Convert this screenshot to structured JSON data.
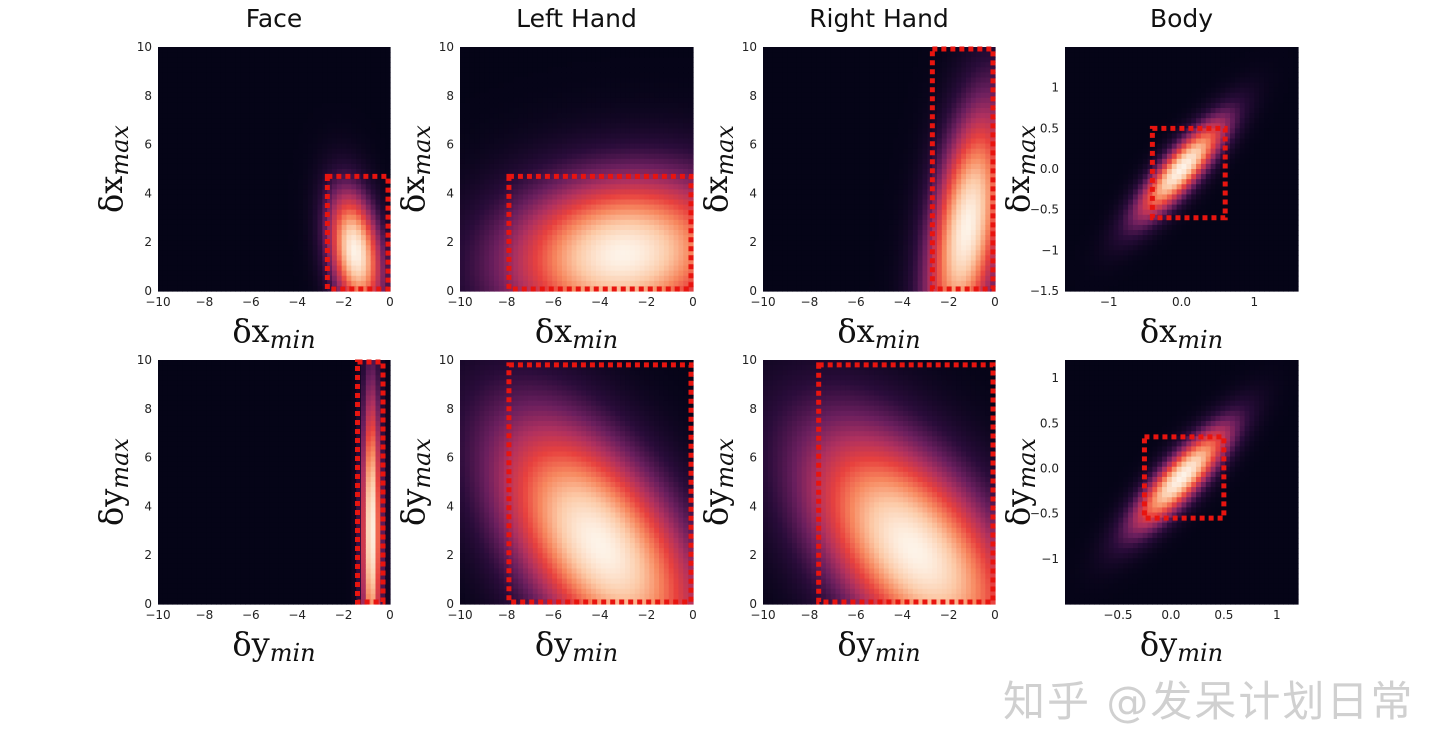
{
  "watermark": "知乎 @发呆计划日常",
  "colors": {
    "background": "#ffffff",
    "box_outline": "#e8140f",
    "colormap": [
      "#050417",
      "#2a0c3a",
      "#6b1f5e",
      "#b0315f",
      "#e8413e",
      "#f7885f",
      "#fcc9a6",
      "#fdf3e8"
    ]
  },
  "chart_data": [
    {
      "type": "heatmap",
      "title": "Face",
      "xlabel": "δx",
      "xlabel_sub": "min",
      "ylabel": "δx",
      "ylabel_sub": "max",
      "xlim": [
        -10,
        0
      ],
      "ylim": [
        0,
        10
      ],
      "xticks": [
        -10,
        -8,
        -6,
        -4,
        -2,
        0
      ],
      "yticks": [
        0,
        2,
        4,
        6,
        8,
        10
      ],
      "density_peak": {
        "x": -1.5,
        "y": 1.6,
        "sx": 0.6,
        "sy": 1.3,
        "rho": -0.3
      },
      "box": {
        "x0": -2.7,
        "x1": 0,
        "y0": 0,
        "y1": 4.7
      }
    },
    {
      "type": "heatmap",
      "title": "Left Hand",
      "xlabel": "δx",
      "xlabel_sub": "min",
      "ylabel": "δx",
      "ylabel_sub": "max",
      "xlim": [
        -10,
        0
      ],
      "ylim": [
        0,
        10
      ],
      "xticks": [
        -10,
        -8,
        -6,
        -4,
        -2,
        0
      ],
      "yticks": [
        0,
        2,
        4,
        6,
        8,
        10
      ],
      "density_peak": {
        "x": -3,
        "y": 1.5,
        "sx": 2.6,
        "sy": 1.7,
        "rho": 0.1
      },
      "box": {
        "x0": -7.9,
        "x1": 0,
        "y0": 0,
        "y1": 4.7
      }
    },
    {
      "type": "heatmap",
      "title": "Right Hand",
      "xlabel": "δx",
      "xlabel_sub": "min",
      "ylabel": "δx",
      "ylabel_sub": "max",
      "xlim": [
        -10,
        0
      ],
      "ylim": [
        0,
        10
      ],
      "xticks": [
        -10,
        -8,
        -6,
        -4,
        -2,
        0
      ],
      "yticks": [
        0,
        2,
        4,
        6,
        8,
        10
      ],
      "density_peak": {
        "x": -1.2,
        "y": 2.6,
        "sx": 0.9,
        "sy": 2.6,
        "rho": 0.45
      },
      "box": {
        "x0": -2.7,
        "x1": 0,
        "y0": 0,
        "y1": 10
      }
    },
    {
      "type": "heatmap",
      "title": "Body",
      "xlabel": "δx",
      "xlabel_sub": "min",
      "ylabel": "δx",
      "ylabel_sub": "max",
      "xlim": [
        -1.6,
        1.6
      ],
      "ylim": [
        -1.5,
        1.5
      ],
      "xticks": [
        -1,
        0,
        1
      ],
      "yticks": [
        -1.5,
        -1.0,
        -0.5,
        0.0,
        0.5,
        1.0
      ],
      "density_peak": {
        "x": 0,
        "y": 0,
        "sx": 0.32,
        "sy": 0.32,
        "rho": 0.85
      },
      "box": {
        "x0": -0.4,
        "x1": 0.6,
        "y0": -0.6,
        "y1": 0.5
      }
    },
    {
      "type": "heatmap",
      "title": "",
      "xlabel": "δy",
      "xlabel_sub": "min",
      "ylabel": "δy",
      "ylabel_sub": "max",
      "xlim": [
        -10,
        0
      ],
      "ylim": [
        0,
        10
      ],
      "xticks": [
        -10,
        -8,
        -6,
        -4,
        -2,
        0
      ],
      "yticks": [
        0,
        2,
        4,
        6,
        8,
        10
      ],
      "density_peak": {
        "x": -0.8,
        "y": 3.0,
        "sx": 0.22,
        "sy": 3.0,
        "rho": 0
      },
      "box": {
        "x0": -1.4,
        "x1": -0.3,
        "y0": 0,
        "y1": 10
      }
    },
    {
      "type": "heatmap",
      "title": "",
      "xlabel": "δy",
      "xlabel_sub": "min",
      "ylabel": "δy",
      "ylabel_sub": "max",
      "xlim": [
        -10,
        0
      ],
      "ylim": [
        0,
        10
      ],
      "xticks": [
        -10,
        -8,
        -6,
        -4,
        -2,
        0
      ],
      "yticks": [
        0,
        2,
        4,
        6,
        8,
        10
      ],
      "density_peak": {
        "x": -4,
        "y": 2.4,
        "sx": 2.3,
        "sy": 2.7,
        "rho": -0.55
      },
      "box": {
        "x0": -7.9,
        "x1": 0,
        "y0": 0,
        "y1": 9.8
      }
    },
    {
      "type": "heatmap",
      "title": "",
      "xlabel": "δy",
      "xlabel_sub": "min",
      "ylabel": "δy",
      "ylabel_sub": "max",
      "xlim": [
        -10,
        0
      ],
      "ylim": [
        0,
        10
      ],
      "xticks": [
        -10,
        -8,
        -6,
        -4,
        -2,
        0
      ],
      "yticks": [
        0,
        2,
        4,
        6,
        8,
        10
      ],
      "density_peak": {
        "x": -3.5,
        "y": 2.2,
        "sx": 2.4,
        "sy": 2.6,
        "rho": -0.55
      },
      "box": {
        "x0": -7.6,
        "x1": 0,
        "y0": 0,
        "y1": 9.8
      }
    },
    {
      "type": "heatmap",
      "title": "",
      "xlabel": "δy",
      "xlabel_sub": "min",
      "ylabel": "δy",
      "ylabel_sub": "max",
      "xlim": [
        -1.0,
        1.2
      ],
      "ylim": [
        -1.5,
        1.2
      ],
      "xticks": [
        -0.5,
        0.0,
        0.5,
        1.0
      ],
      "yticks": [
        -1.0,
        -0.5,
        0.0,
        0.5,
        1.0
      ],
      "density_peak": {
        "x": 0.1,
        "y": -0.1,
        "sx": 0.24,
        "sy": 0.3,
        "rho": 0.85
      },
      "box": {
        "x0": -0.25,
        "x1": 0.5,
        "y0": -0.55,
        "y1": 0.35
      }
    }
  ]
}
